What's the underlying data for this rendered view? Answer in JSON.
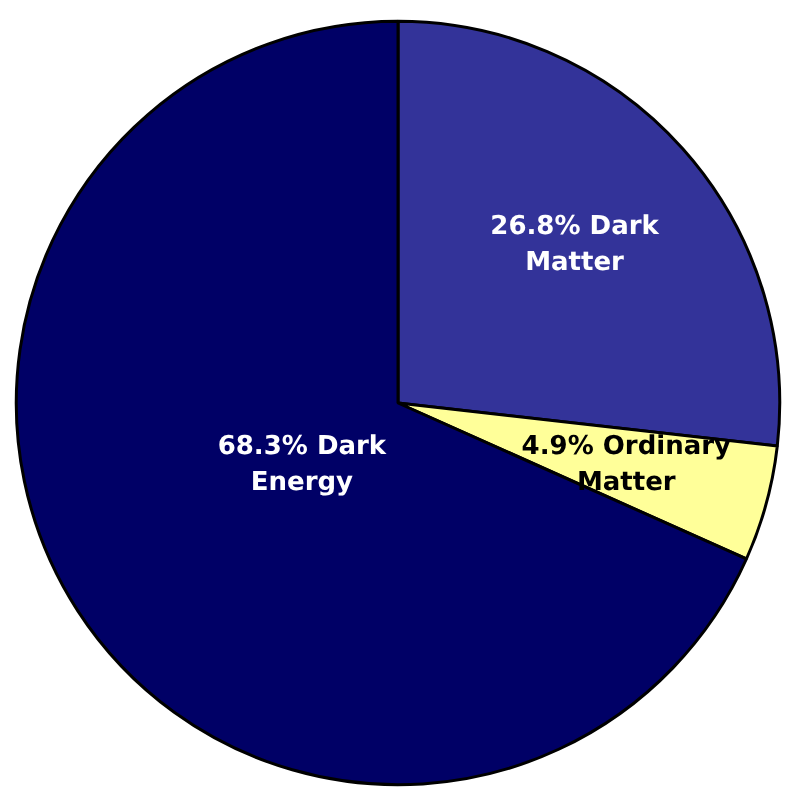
{
  "chart_data": {
    "type": "pie",
    "categories": [
      "Dark Matter",
      "Ordinary Matter",
      "Dark Energy"
    ],
    "values": [
      26.8,
      4.9,
      68.3
    ],
    "colors": [
      "#333399",
      "#ffff99",
      "#000066"
    ],
    "value_labels": [
      "26.8%",
      "4.9%",
      "68.3%"
    ],
    "legend": false
  }
}
